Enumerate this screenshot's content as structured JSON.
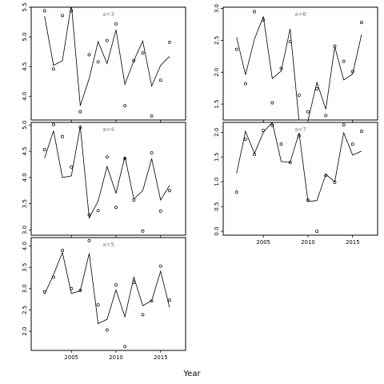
{
  "chart_data": {
    "type": "line",
    "xlabel": "Year",
    "x_ticks": [
      2005,
      2010,
      2015
    ],
    "panels": [
      {
        "title": "a=3",
        "xlim": [
          2000.5,
          2017.8
        ],
        "ylim": [
          3.6,
          5.5
        ],
        "y_ticks": [
          4.0,
          4.5,
          5.0,
          5.5
        ],
        "y_tick_labels": [
          "4.0",
          "4.5",
          "5.0",
          "5.5"
        ],
        "x_tick_labels_shown": false,
        "points": {
          "x": [
            2002,
            2003,
            2004,
            2005,
            2006,
            2007,
            2008,
            2009,
            2010,
            2011,
            2012,
            2013,
            2014,
            2015,
            2016
          ],
          "y": [
            5.44,
            4.46,
            5.36,
            5.44,
            3.74,
            4.7,
            4.58,
            4.94,
            5.22,
            3.84,
            4.6,
            4.73,
            3.67,
            4.27,
            4.91
          ]
        },
        "line": {
          "x": [
            2002,
            2003,
            2004,
            2005,
            2006,
            2007,
            2008,
            2009,
            2010,
            2011,
            2012,
            2013,
            2014,
            2015,
            2016
          ],
          "y": [
            5.35,
            4.52,
            4.6,
            5.55,
            3.84,
            4.3,
            4.92,
            4.55,
            5.12,
            4.2,
            4.6,
            4.93,
            4.17,
            4.52,
            4.67
          ]
        }
      },
      {
        "title": "a=6",
        "xlim": [
          2000.5,
          2017.8
        ],
        "ylim": [
          1.25,
          3.02
        ],
        "y_ticks": [
          1.5,
          2.0,
          2.5,
          3.0
        ],
        "y_tick_labels": [
          "1.5",
          "2.0",
          "2.5",
          "3.0"
        ],
        "x_tick_labels_shown": false,
        "points": {
          "x": [
            2002,
            2003,
            2004,
            2005,
            2006,
            2007,
            2008,
            2009,
            2010,
            2011,
            2012,
            2013,
            2014,
            2015,
            2016
          ],
          "y": [
            2.36,
            1.82,
            2.95,
            2.82,
            1.52,
            2.06,
            2.48,
            1.64,
            1.38,
            1.74,
            1.32,
            2.41,
            2.17,
            2.01,
            2.78
          ]
        },
        "line": {
          "x": [
            2002,
            2003,
            2004,
            2005,
            2006,
            2007,
            2008,
            2009,
            2010,
            2011,
            2012,
            2013,
            2014,
            2015,
            2016
          ],
          "y": [
            2.55,
            1.96,
            2.52,
            2.87,
            1.9,
            2.02,
            2.68,
            1.23,
            1.24,
            1.84,
            1.42,
            2.4,
            1.88,
            1.97,
            2.59
          ]
        }
      },
      {
        "title": "a=4",
        "xlim": [
          2000.5,
          2017.8
        ],
        "ylim": [
          2.9,
          5.05
        ],
        "y_ticks": [
          3.0,
          3.5,
          4.0,
          4.5,
          5.0
        ],
        "y_tick_labels": [
          "3.0",
          "3.5",
          "4.0",
          "4.5",
          "5.0"
        ],
        "x_tick_labels_shown": false,
        "points": {
          "x": [
            2002,
            2003,
            2004,
            2005,
            2006,
            2007,
            2008,
            2009,
            2010,
            2011,
            2012,
            2013,
            2014,
            2015,
            2016
          ],
          "y": [
            4.53,
            5.01,
            4.78,
            4.2,
            4.96,
            3.29,
            3.37,
            4.39,
            3.43,
            4.36,
            3.57,
            2.98,
            4.47,
            3.36,
            3.75
          ]
        },
        "line": {
          "x": [
            2002,
            2003,
            2004,
            2005,
            2006,
            2007,
            2008,
            2009,
            2010,
            2011,
            2012,
            2013,
            2014,
            2015,
            2016
          ],
          "y": [
            4.37,
            4.89,
            4.0,
            4.03,
            4.97,
            3.23,
            3.55,
            4.21,
            3.7,
            4.4,
            3.59,
            3.75,
            4.36,
            3.57,
            3.85
          ]
        }
      },
      {
        "title": "a=7",
        "xlim": [
          2000.5,
          2017.8
        ],
        "ylim": [
          -0.08,
          2.2
        ],
        "y_ticks": [
          0.0,
          0.5,
          1.0,
          1.5,
          2.0
        ],
        "y_tick_labels": [
          "0.0",
          "0.5",
          "1.0",
          "1.5",
          "2.0"
        ],
        "x_tick_labels_shown": true,
        "points": {
          "x": [
            2002,
            2003,
            2004,
            2005,
            2006,
            2007,
            2008,
            2009,
            2010,
            2011,
            2012,
            2013,
            2014,
            2015,
            2016
          ],
          "y": [
            0.79,
            1.86,
            1.55,
            2.04,
            2.14,
            1.76,
            1.39,
            1.93,
            0.63,
            0.0,
            1.13,
            0.99,
            2.15,
            1.76,
            2.02
          ]
        },
        "line": {
          "x": [
            2002,
            2003,
            2004,
            2005,
            2006,
            2007,
            2008,
            2009,
            2010,
            2011,
            2012,
            2013,
            2014,
            2015,
            2016
          ],
          "y": [
            1.17,
            2.02,
            1.57,
            2.0,
            2.2,
            1.41,
            1.39,
            1.99,
            0.6,
            0.62,
            1.15,
            1.0,
            1.99,
            1.54,
            1.62
          ]
        }
      },
      {
        "title": "a=5",
        "xlim": [
          2000.5,
          2017.8
        ],
        "ylim": [
          1.55,
          4.2
        ],
        "y_ticks": [
          2.0,
          2.5,
          3.0,
          3.5,
          4.0
        ],
        "y_tick_labels": [
          "2.0",
          "2.5",
          "3.0",
          "3.5",
          "4.0"
        ],
        "x_tick_labels_shown": true,
        "points": {
          "x": [
            2002,
            2003,
            2004,
            2005,
            2006,
            2007,
            2008,
            2009,
            2010,
            2011,
            2012,
            2013,
            2014,
            2015,
            2016
          ],
          "y": [
            2.93,
            3.27,
            3.9,
            3.0,
            2.96,
            4.13,
            2.62,
            2.03,
            3.09,
            1.64,
            3.15,
            2.39,
            2.71,
            3.53,
            2.73
          ]
        },
        "line": {
          "x": [
            2002,
            2003,
            2004,
            2005,
            2006,
            2007,
            2008,
            2009,
            2010,
            2011,
            2012,
            2013,
            2014,
            2015,
            2016
          ],
          "y": [
            2.87,
            3.33,
            3.85,
            2.89,
            2.95,
            3.83,
            2.18,
            2.28,
            2.97,
            2.34,
            3.27,
            2.6,
            2.72,
            3.41,
            2.56
          ]
        }
      }
    ]
  }
}
